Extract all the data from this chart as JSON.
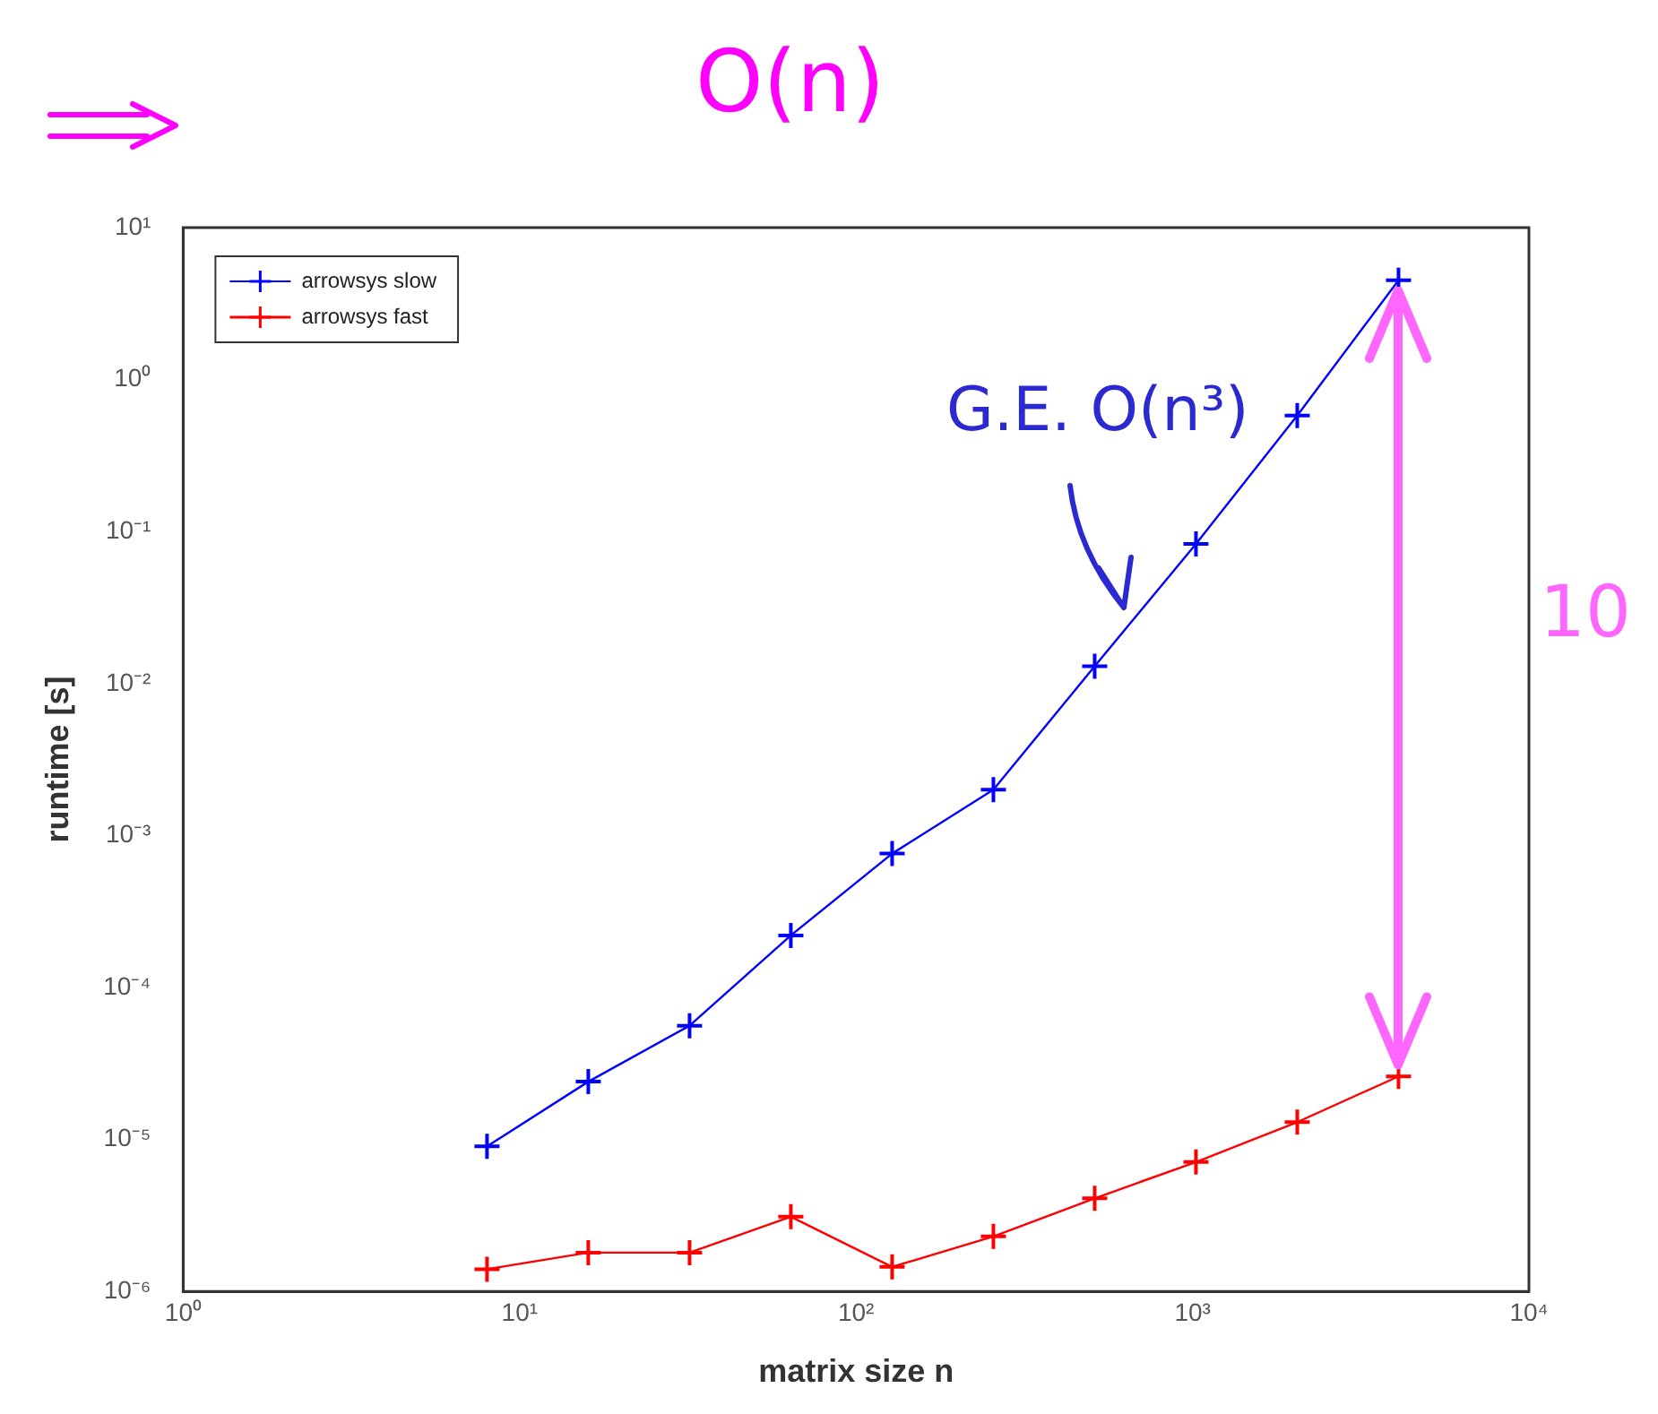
{
  "chart_data": {
    "type": "line",
    "xlabel": "matrix size n",
    "ylabel": "runtime [s]",
    "x": [
      8,
      16,
      32,
      64,
      128,
      256,
      512,
      1024,
      2048,
      4096
    ],
    "series": [
      {
        "name": "arrowsys slow",
        "color": "#0000ff",
        "marker": "cross",
        "values": [
          9e-06,
          2.4e-05,
          5.6e-05,
          0.00022,
          0.00076,
          0.002,
          0.013,
          0.083,
          0.58,
          4.5
        ]
      },
      {
        "name": "arrowsys fast",
        "color": "#ff0000",
        "marker": "cross",
        "values": [
          1.4e-06,
          1.8e-06,
          1.8e-06,
          3.1e-06,
          1.45e-06,
          2.3e-06,
          4.1e-06,
          7.1e-06,
          1.3e-05,
          2.6e-05
        ]
      }
    ],
    "log": "xy",
    "xlim": [
      1,
      10000
    ],
    "ylim": [
      1e-06,
      10
    ],
    "xticks": [
      {
        "value": 1,
        "label": "10⁰"
      },
      {
        "value": 10,
        "label": "10¹"
      },
      {
        "value": 100,
        "label": "10²"
      },
      {
        "value": 1000,
        "label": "10³"
      },
      {
        "value": 10000,
        "label": "10⁴"
      }
    ],
    "yticks": [
      {
        "value": 1e-06,
        "label": "10⁻⁶"
      },
      {
        "value": 1e-05,
        "label": "10⁻⁵"
      },
      {
        "value": 0.0001,
        "label": "10⁻⁴"
      },
      {
        "value": 0.001,
        "label": "10⁻³"
      },
      {
        "value": 0.01,
        "label": "10⁻²"
      },
      {
        "value": 0.1,
        "label": "10⁻¹"
      },
      {
        "value": 1,
        "label": "10⁰"
      },
      {
        "value": 10,
        "label": "10¹"
      }
    ],
    "grid": false,
    "legend": "top left",
    "line_style": "solid",
    "annotations": [
      "O(n)",
      "G.E. O(n³)",
      "10"
    ]
  }
}
